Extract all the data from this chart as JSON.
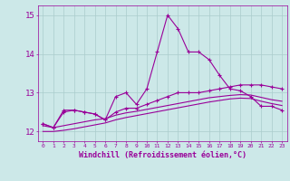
{
  "x": [
    0,
    1,
    2,
    3,
    4,
    5,
    6,
    7,
    8,
    9,
    10,
    11,
    12,
    13,
    14,
    15,
    16,
    17,
    18,
    19,
    20,
    21,
    22,
    23
  ],
  "line1": [
    12.2,
    12.1,
    12.5,
    12.55,
    12.5,
    12.45,
    12.3,
    12.9,
    13.0,
    12.7,
    13.1,
    14.05,
    15.0,
    14.65,
    14.05,
    14.05,
    13.85,
    13.45,
    13.1,
    13.05,
    12.9,
    12.65,
    12.65,
    12.55
  ],
  "line2": [
    12.2,
    12.1,
    12.55,
    12.55,
    12.5,
    12.45,
    12.3,
    12.5,
    12.6,
    12.6,
    12.7,
    12.8,
    12.9,
    13.0,
    13.0,
    13.0,
    13.05,
    13.1,
    13.15,
    13.2,
    13.2,
    13.2,
    13.15,
    13.1
  ],
  "line3": [
    12.15,
    12.1,
    12.15,
    12.2,
    12.25,
    12.3,
    12.33,
    12.42,
    12.48,
    12.52,
    12.57,
    12.62,
    12.67,
    12.72,
    12.77,
    12.82,
    12.87,
    12.9,
    12.93,
    12.95,
    12.94,
    12.88,
    12.82,
    12.78
  ],
  "line4": [
    12.0,
    12.0,
    12.03,
    12.07,
    12.12,
    12.17,
    12.22,
    12.3,
    12.36,
    12.41,
    12.46,
    12.51,
    12.56,
    12.61,
    12.66,
    12.71,
    12.76,
    12.8,
    12.84,
    12.86,
    12.85,
    12.78,
    12.72,
    12.67
  ],
  "ylim": [
    11.75,
    15.25
  ],
  "yticks": [
    12,
    13,
    14,
    15
  ],
  "xticks": [
    0,
    1,
    2,
    3,
    4,
    5,
    6,
    7,
    8,
    9,
    10,
    11,
    12,
    13,
    14,
    15,
    16,
    17,
    18,
    19,
    20,
    21,
    22,
    23
  ],
  "xlabel": "Windchill (Refroidissement éolien,°C)",
  "line_color": "#990099",
  "bg_color": "#cce8e8",
  "grid_color": "#aacccc",
  "marker": "+",
  "marker_size": 3.5
}
